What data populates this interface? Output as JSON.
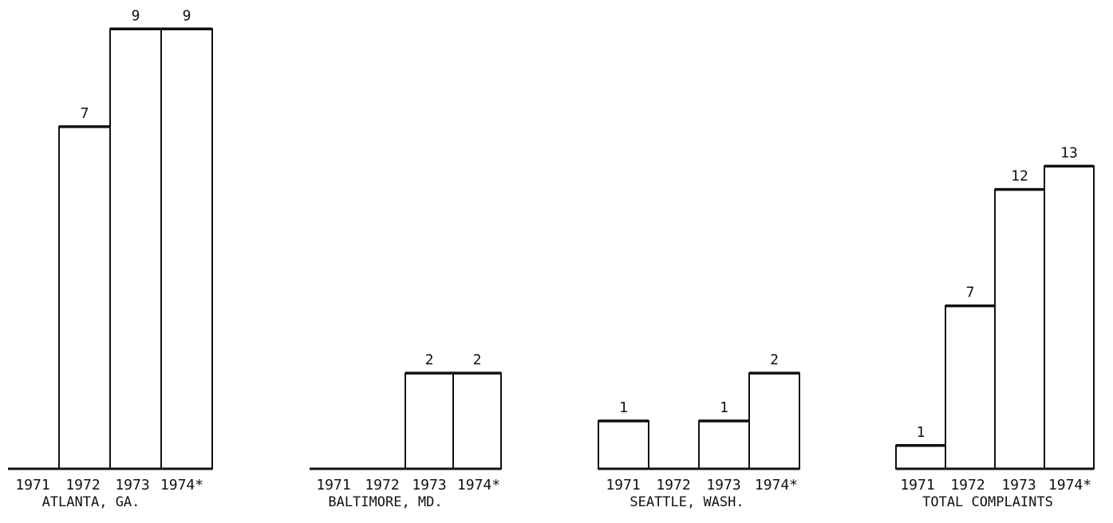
{
  "chart_data": [
    {
      "type": "bar",
      "title": "ATLANTA, GA.",
      "categories": [
        "1971",
        "1972",
        "1973",
        "1974*"
      ],
      "values": [
        0,
        7,
        9,
        9
      ],
      "ylim": [
        0,
        13
      ],
      "grid": false
    },
    {
      "type": "bar",
      "title": "BALTIMORE, MD.",
      "categories": [
        "1971",
        "1972",
        "1973",
        "1974*"
      ],
      "values": [
        0,
        0,
        2,
        2
      ],
      "ylim": [
        0,
        13
      ],
      "grid": false
    },
    {
      "type": "bar",
      "title": "SEATTLE, WASH.",
      "categories": [
        "1971",
        "1972",
        "1973",
        "1974*"
      ],
      "values": [
        1,
        0,
        1,
        2
      ],
      "ylim": [
        0,
        13
      ],
      "grid": false
    },
    {
      "type": "bar",
      "title": "TOTAL COMPLAINTS",
      "categories": [
        "1971",
        "1972",
        "1973",
        "1974*"
      ],
      "values": [
        1,
        7,
        12,
        13
      ],
      "ylim": [
        0,
        13
      ],
      "grid": false
    }
  ]
}
